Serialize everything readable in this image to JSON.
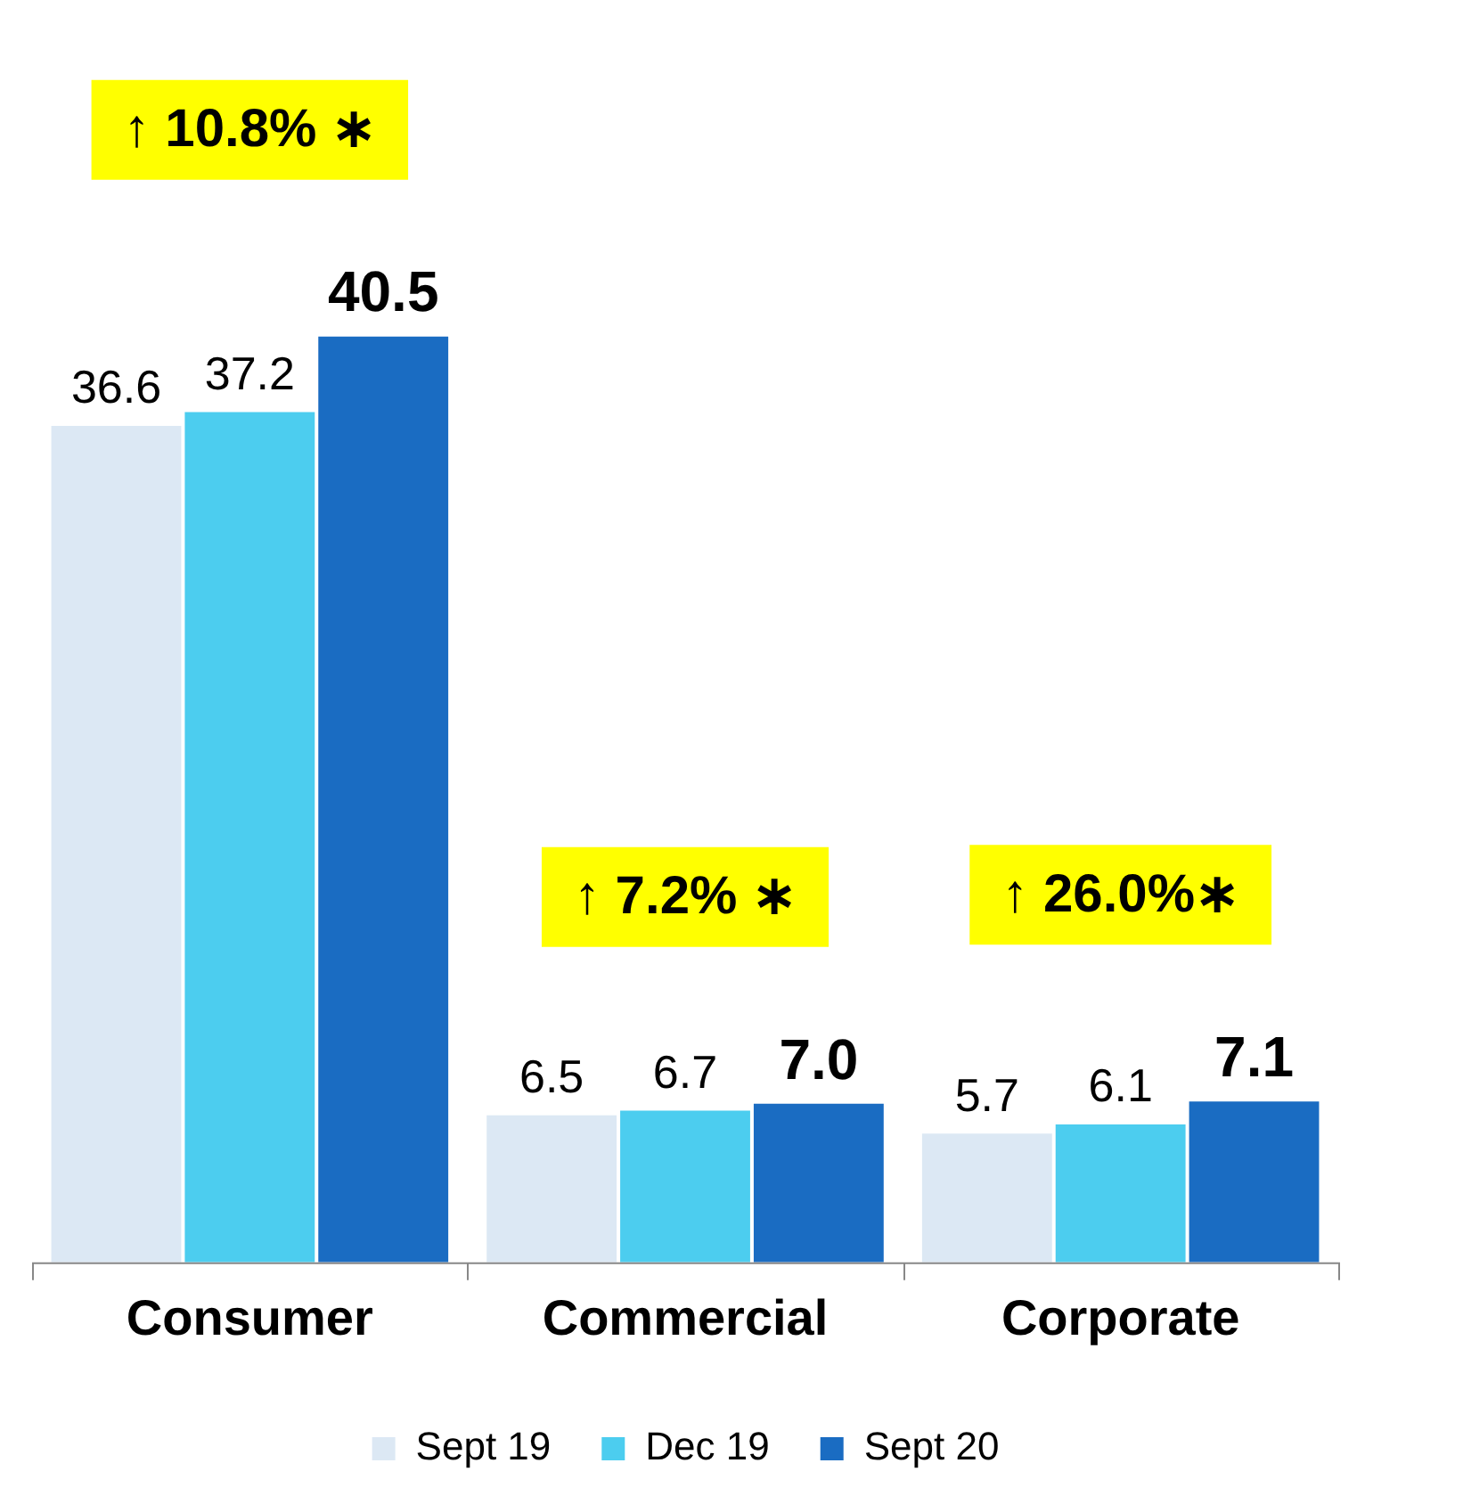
{
  "chart_data": {
    "type": "bar",
    "categories": [
      "Consumer",
      "Commercial",
      "Corporate"
    ],
    "series": [
      {
        "name": "Sept 19",
        "color": "#dce8f4",
        "values": [
          36.6,
          6.5,
          5.7
        ],
        "value_labels": [
          "36.6",
          "6.5",
          "5.7"
        ]
      },
      {
        "name": "Dec 19",
        "color": "#4ccdef",
        "values": [
          37.2,
          6.7,
          6.1
        ],
        "value_labels": [
          "37.2",
          "6.7",
          "6.1"
        ]
      },
      {
        "name": "Sept 20",
        "color": "#1a6cc2",
        "values": [
          40.5,
          7.0,
          7.1
        ],
        "value_labels": [
          "40.5",
          "7.0",
          "7.1"
        ]
      }
    ],
    "tick_labels": "x",
    "grid": false,
    "legend": "bottom",
    "annotations": [
      "↑ 10.8% ∗",
      "↑ 7.2% ∗",
      "↑ 26.0%∗"
    ]
  }
}
